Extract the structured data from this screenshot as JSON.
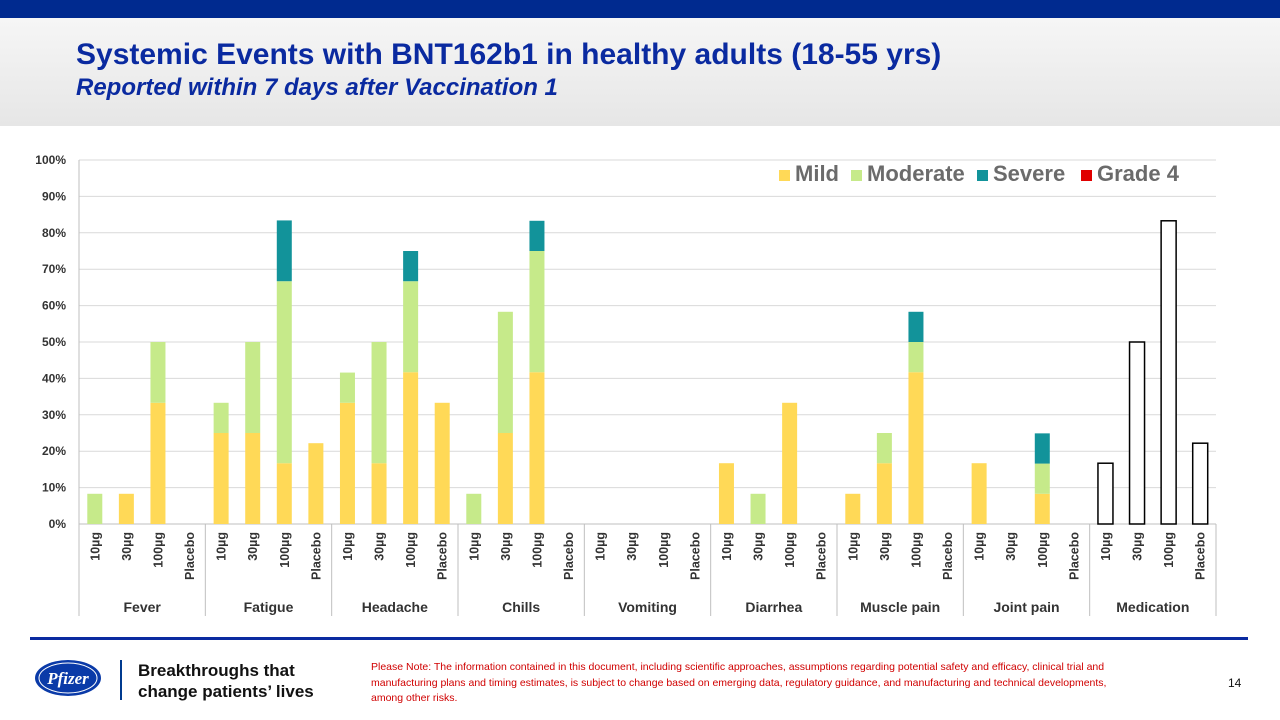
{
  "slide": {
    "title": "Systemic Events with BNT162b1 in healthy adults (18-55 yrs)",
    "subtitle": "Reported within 7 days after Vaccination 1",
    "tagline_line1": "Breakthroughs that",
    "tagline_line2": "change patients’ lives",
    "note": "Please Note: The information contained in this document, including scientific approaches, assumptions regarding potential safety and efficacy, clinical trial and manufacturing plans and timing estimates, is subject to change based on emerging data, regulatory guidance, and manufacturing and technical developments, among other risks.",
    "page_number": "14",
    "logo_text": "Pfizer"
  },
  "chart_data": {
    "type": "bar",
    "stacked": true,
    "title": "",
    "xlabel": "",
    "ylabel": "",
    "ylim": [
      0,
      100
    ],
    "y_ticks": [
      "0%",
      "10%",
      "20%",
      "30%",
      "40%",
      "50%",
      "60%",
      "70%",
      "80%",
      "90%",
      "100%"
    ],
    "grid": true,
    "legend_position": "top-right",
    "dose_labels": [
      "10µg",
      "30µg",
      "100µg",
      "Placebo"
    ],
    "groups": [
      "Fever",
      "Fatigue",
      "Headache",
      "Chills",
      "Vomiting",
      "Diarrhea",
      "Muscle pain",
      "Joint pain",
      "Medication"
    ],
    "series": [
      {
        "name": "Mild",
        "color": "#ffd957",
        "values": [
          0,
          8.3,
          33.3,
          0,
          25,
          25,
          16.7,
          22.2,
          33.3,
          16.7,
          41.7,
          33.3,
          0,
          25,
          41.7,
          0,
          0,
          0,
          0,
          0,
          16.7,
          0,
          33.3,
          0,
          8.3,
          16.7,
          41.7,
          0,
          16.7,
          0,
          8.3,
          0,
          0,
          0,
          0,
          0
        ]
      },
      {
        "name": "Moderate",
        "color": "#c6ea8a",
        "values": [
          8.3,
          0,
          16.7,
          0,
          8.3,
          25,
          50,
          0,
          8.3,
          33.3,
          25,
          0,
          8.3,
          33.3,
          33.3,
          0,
          0,
          0,
          0,
          0,
          0,
          8.3,
          0,
          0,
          0,
          8.3,
          8.3,
          0,
          0,
          0,
          8.3,
          0,
          0,
          0,
          0,
          0
        ]
      },
      {
        "name": "Severe",
        "color": "#12939a",
        "values": [
          0,
          0,
          0,
          0,
          0,
          0,
          16.7,
          0,
          0,
          0,
          8.3,
          0,
          0,
          0,
          8.3,
          0,
          0,
          0,
          0,
          0,
          0,
          0,
          0,
          0,
          0,
          0,
          8.3,
          0,
          0,
          0,
          8.3,
          0,
          0,
          0,
          0,
          0
        ]
      },
      {
        "name": "Grade 4",
        "color": "#e00000",
        "values": [
          0,
          0,
          0,
          0,
          0,
          0,
          0,
          0,
          0,
          0,
          0,
          0,
          0,
          0,
          0,
          0,
          0,
          0,
          0,
          0,
          0,
          0,
          0,
          0,
          0,
          0,
          0,
          0,
          0,
          0,
          0,
          0,
          0,
          0,
          0,
          0
        ]
      }
    ],
    "medication_values": [
      16.7,
      50,
      83.3,
      22.2
    ]
  }
}
